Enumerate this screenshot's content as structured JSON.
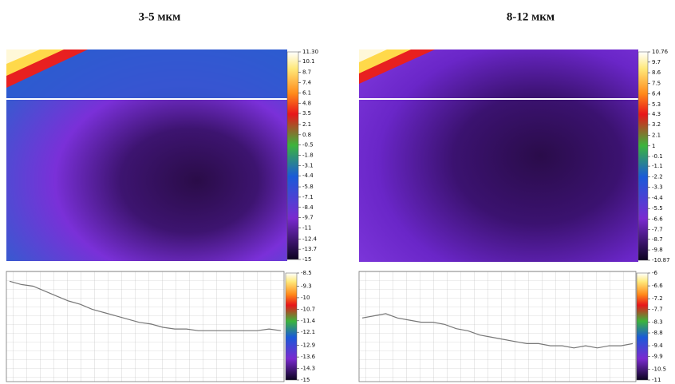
{
  "panels": [
    {
      "title": "3-5 мкм",
      "colorbar_ticks": [
        {
          "value": 11.3,
          "label": "11.30"
        },
        10.1,
        8.7,
        7.4,
        6.1,
        4.8,
        3.5,
        2.1,
        0.8,
        -0.5,
        -1.8,
        -3.1,
        -4.4,
        -5.8,
        -7.1,
        -8.4,
        -9.7,
        -11,
        -12.4,
        -13.7,
        -15
      ],
      "profile": {
        "colorbar_ticks": [
          -8.5,
          -9.3,
          -10,
          -10.7,
          -11.4,
          -12.1,
          -12.9,
          -13.6,
          -14.3,
          -15
        ],
        "values": [
          -9.0,
          -9.2,
          -9.3,
          -9.6,
          -9.9,
          -10.2,
          -10.4,
          -10.7,
          -10.9,
          -11.1,
          -11.3,
          -11.5,
          -11.6,
          -11.8,
          -11.9,
          -11.9,
          -12.0,
          -12.0,
          -12.0,
          -12.0,
          -12.0,
          -12.0,
          -11.9,
          -12.0
        ]
      }
    },
    {
      "title": "8-12 мкм",
      "colorbar_ticks": [
        10.76,
        9.7,
        8.6,
        7.5,
        6.4,
        5.3,
        4.3,
        3.2,
        2.1,
        1,
        -0.1,
        -1.1,
        -2.2,
        -3.3,
        -4.4,
        -5.5,
        -6.6,
        -7.7,
        -8.7,
        -9.8,
        -10.87
      ],
      "profile": {
        "colorbar_ticks": [
          -6,
          -6.6,
          -7.2,
          -7.7,
          -8.3,
          -8.8,
          -9.4,
          -9.9,
          -10.5,
          -11
        ],
        "values": [
          -8.1,
          -8.0,
          -7.9,
          -8.1,
          -8.2,
          -8.3,
          -8.3,
          -8.4,
          -8.6,
          -8.7,
          -8.9,
          -9.0,
          -9.1,
          -9.2,
          -9.3,
          -9.3,
          -9.4,
          -9.4,
          -9.5,
          -9.4,
          -9.5,
          -9.4,
          -9.4,
          -9.3
        ]
      }
    }
  ]
}
